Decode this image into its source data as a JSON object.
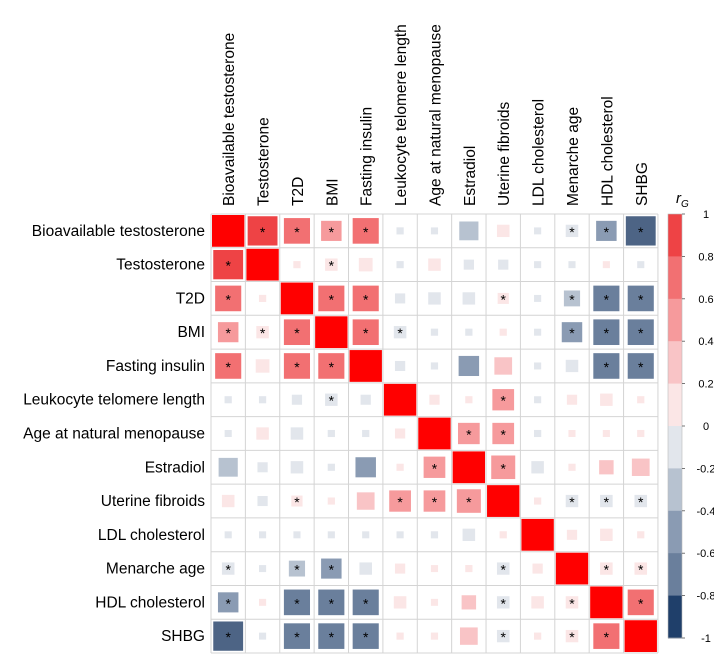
{
  "chart_data": {
    "type": "heatmap",
    "title": "",
    "legend": {
      "label": "r",
      "label_subscript": "G",
      "range": [
        -1,
        1
      ],
      "tick_labels": [
        "1",
        "0.8",
        "0.6",
        "0.4",
        "0.2",
        "0",
        "-0.2",
        "-0.4",
        "-0.6",
        "-0.8",
        "-1"
      ],
      "placement": "right"
    },
    "palette": {
      "positive": [
        "#fbe6e6",
        "#f9c4c6",
        "#f69a9c",
        "#f27072",
        "#ee4345",
        "#ff0000"
      ],
      "negative": [
        "#e2e6ec",
        "#b7c2d0",
        "#8a9bb3",
        "#6a7f9c",
        "#4d6485",
        "#1f3f6a"
      ]
    },
    "variables": [
      "Bioavailable testosterone",
      "Testosterone",
      "T2D",
      "BMI",
      "Fasting insulin",
      "Leukocyte telomere length",
      "Age at natural menopause",
      "Estradiol",
      "Uterine fibroids",
      "LDL cholesterol",
      "Menarche age",
      "HDL cholesterol",
      "SHBG"
    ],
    "significance_marker": "*",
    "matrix": [
      [
        1.0,
        0.85,
        0.65,
        0.4,
        0.65,
        -0.05,
        -0.02,
        -0.35,
        0.15,
        -0.02,
        -0.15,
        -0.4,
        -0.85
      ],
      [
        0.85,
        1.0,
        0.05,
        0.15,
        0.18,
        -0.05,
        0.15,
        -0.1,
        -0.1,
        -0.02,
        -0.02,
        0.01,
        -0.02
      ],
      [
        0.65,
        0.05,
        1.0,
        0.65,
        0.65,
        -0.1,
        -0.15,
        -0.15,
        0.12,
        -0.02,
        -0.25,
        -0.65,
        -0.65
      ],
      [
        0.4,
        0.15,
        0.65,
        1.0,
        0.65,
        -0.15,
        -0.05,
        -0.05,
        0.05,
        -0.02,
        -0.4,
        -0.65,
        -0.65
      ],
      [
        0.65,
        0.18,
        0.65,
        0.65,
        1.0,
        -0.1,
        -0.05,
        -0.4,
        0.3,
        -0.02,
        -0.15,
        -0.65,
        -0.65
      ],
      [
        -0.05,
        -0.05,
        -0.1,
        -0.15,
        -0.1,
        1.0,
        0.1,
        0.05,
        0.45,
        -0.02,
        0.1,
        0.15,
        0.05
      ],
      [
        -0.02,
        0.15,
        -0.15,
        -0.05,
        -0.05,
        0.1,
        1.0,
        0.45,
        0.45,
        -0.05,
        0.02,
        0.02,
        0.05
      ],
      [
        -0.35,
        -0.1,
        -0.15,
        -0.05,
        -0.4,
        0.05,
        0.45,
        1.0,
        0.55,
        -0.15,
        0.05,
        0.2,
        0.3
      ],
      [
        0.15,
        -0.1,
        0.12,
        0.05,
        0.3,
        0.45,
        0.45,
        0.55,
        1.0,
        0.05,
        -0.15,
        -0.15,
        -0.15
      ],
      [
        -0.02,
        -0.02,
        -0.02,
        -0.02,
        -0.02,
        -0.02,
        -0.05,
        -0.15,
        0.05,
        1.0,
        0.1,
        0.15,
        0.05
      ],
      [
        -0.15,
        -0.02,
        -0.25,
        -0.4,
        -0.15,
        0.1,
        0.02,
        0.05,
        -0.15,
        0.1,
        1.0,
        0.15,
        0.15
      ],
      [
        -0.4,
        0.01,
        -0.65,
        -0.65,
        -0.65,
        0.15,
        0.02,
        0.2,
        -0.15,
        0.15,
        0.15,
        1.0,
        0.65
      ],
      [
        -0.85,
        -0.02,
        -0.65,
        -0.65,
        -0.65,
        0.05,
        0.05,
        0.3,
        -0.15,
        0.05,
        0.15,
        0.65,
        1.0
      ]
    ],
    "significant": [
      [
        0,
        1,
        1,
        1,
        1,
        0,
        0,
        0,
        0,
        0,
        1,
        1,
        1
      ],
      [
        1,
        0,
        0,
        1,
        0,
        0,
        0,
        0,
        0,
        0,
        0,
        0,
        0
      ],
      [
        1,
        0,
        0,
        1,
        1,
        0,
        0,
        0,
        1,
        0,
        1,
        1,
        1
      ],
      [
        1,
        1,
        1,
        0,
        1,
        1,
        0,
        0,
        0,
        0,
        1,
        1,
        1
      ],
      [
        1,
        0,
        1,
        1,
        0,
        0,
        0,
        0,
        0,
        0,
        0,
        1,
        1
      ],
      [
        0,
        0,
        0,
        1,
        0,
        0,
        0,
        0,
        1,
        0,
        0,
        0,
        0
      ],
      [
        0,
        0,
        0,
        0,
        0,
        0,
        0,
        1,
        1,
        0,
        0,
        0,
        0
      ],
      [
        0,
        0,
        0,
        0,
        0,
        0,
        1,
        0,
        1,
        0,
        0,
        0,
        0
      ],
      [
        0,
        0,
        1,
        0,
        0,
        1,
        1,
        1,
        0,
        0,
        1,
        1,
        1
      ],
      [
        0,
        0,
        0,
        0,
        0,
        0,
        0,
        0,
        0,
        0,
        0,
        0,
        0
      ],
      [
        1,
        0,
        1,
        1,
        0,
        0,
        0,
        0,
        1,
        0,
        0,
        1,
        1
      ],
      [
        1,
        0,
        1,
        1,
        1,
        0,
        0,
        0,
        1,
        0,
        1,
        0,
        1
      ],
      [
        1,
        0,
        1,
        1,
        1,
        0,
        0,
        0,
        1,
        0,
        1,
        1,
        0
      ]
    ]
  }
}
